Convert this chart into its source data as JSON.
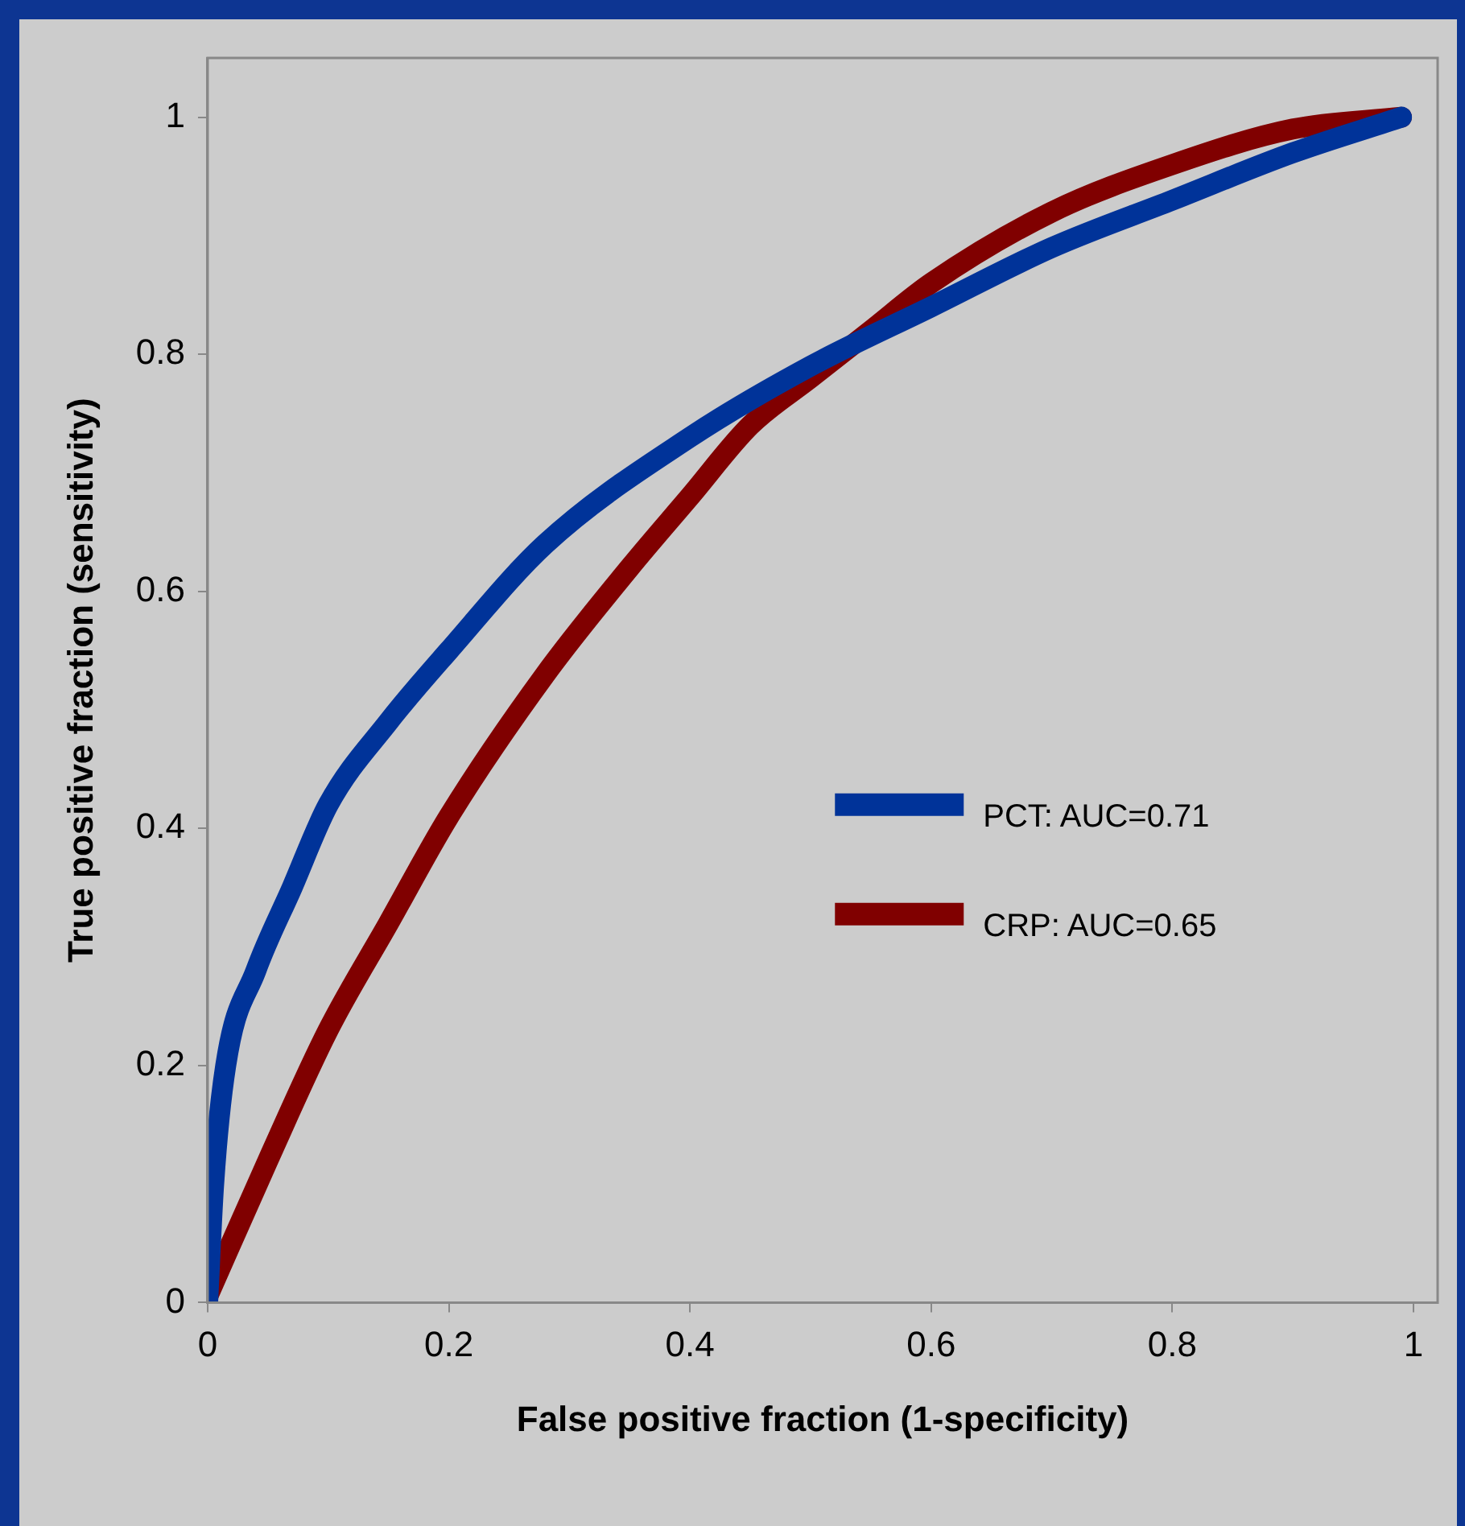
{
  "chart_data": {
    "type": "line",
    "xlabel": "False positive fraction (1-specificity)",
    "ylabel": "True positive fraction (sensitivity)",
    "xlim": [
      0,
      1.02
    ],
    "ylim": [
      0,
      1.05
    ],
    "xticks": [
      0,
      0.2,
      0.4,
      0.6,
      0.8,
      1
    ],
    "yticks": [
      0,
      0.2,
      0.4,
      0.6,
      0.8,
      1
    ],
    "grid": false,
    "legend": "right",
    "marker": "none",
    "line_style": "solid",
    "series": [
      {
        "name": "PCT: AUC=0.71",
        "color": "#003399",
        "x": [
          0,
          0.005,
          0.015,
          0.04,
          0.07,
          0.1,
          0.15,
          0.2,
          0.28,
          0.4,
          0.5,
          0.6,
          0.7,
          0.8,
          0.9,
          0.99
        ],
        "values": [
          0,
          0.1,
          0.2,
          0.28,
          0.35,
          0.42,
          0.49,
          0.55,
          0.64,
          0.73,
          0.79,
          0.84,
          0.89,
          0.93,
          0.97,
          1
        ]
      },
      {
        "name": "CRP: AUC=0.65",
        "color": "#800000",
        "x": [
          0,
          0.05,
          0.1,
          0.15,
          0.2,
          0.28,
          0.35,
          0.4,
          0.45,
          0.5,
          0.55,
          0.6,
          0.7,
          0.8,
          0.9,
          0.99
        ],
        "values": [
          0.005,
          0.12,
          0.23,
          0.32,
          0.41,
          0.53,
          0.62,
          0.68,
          0.74,
          0.78,
          0.82,
          0.86,
          0.92,
          0.96,
          0.99,
          1
        ]
      }
    ]
  }
}
